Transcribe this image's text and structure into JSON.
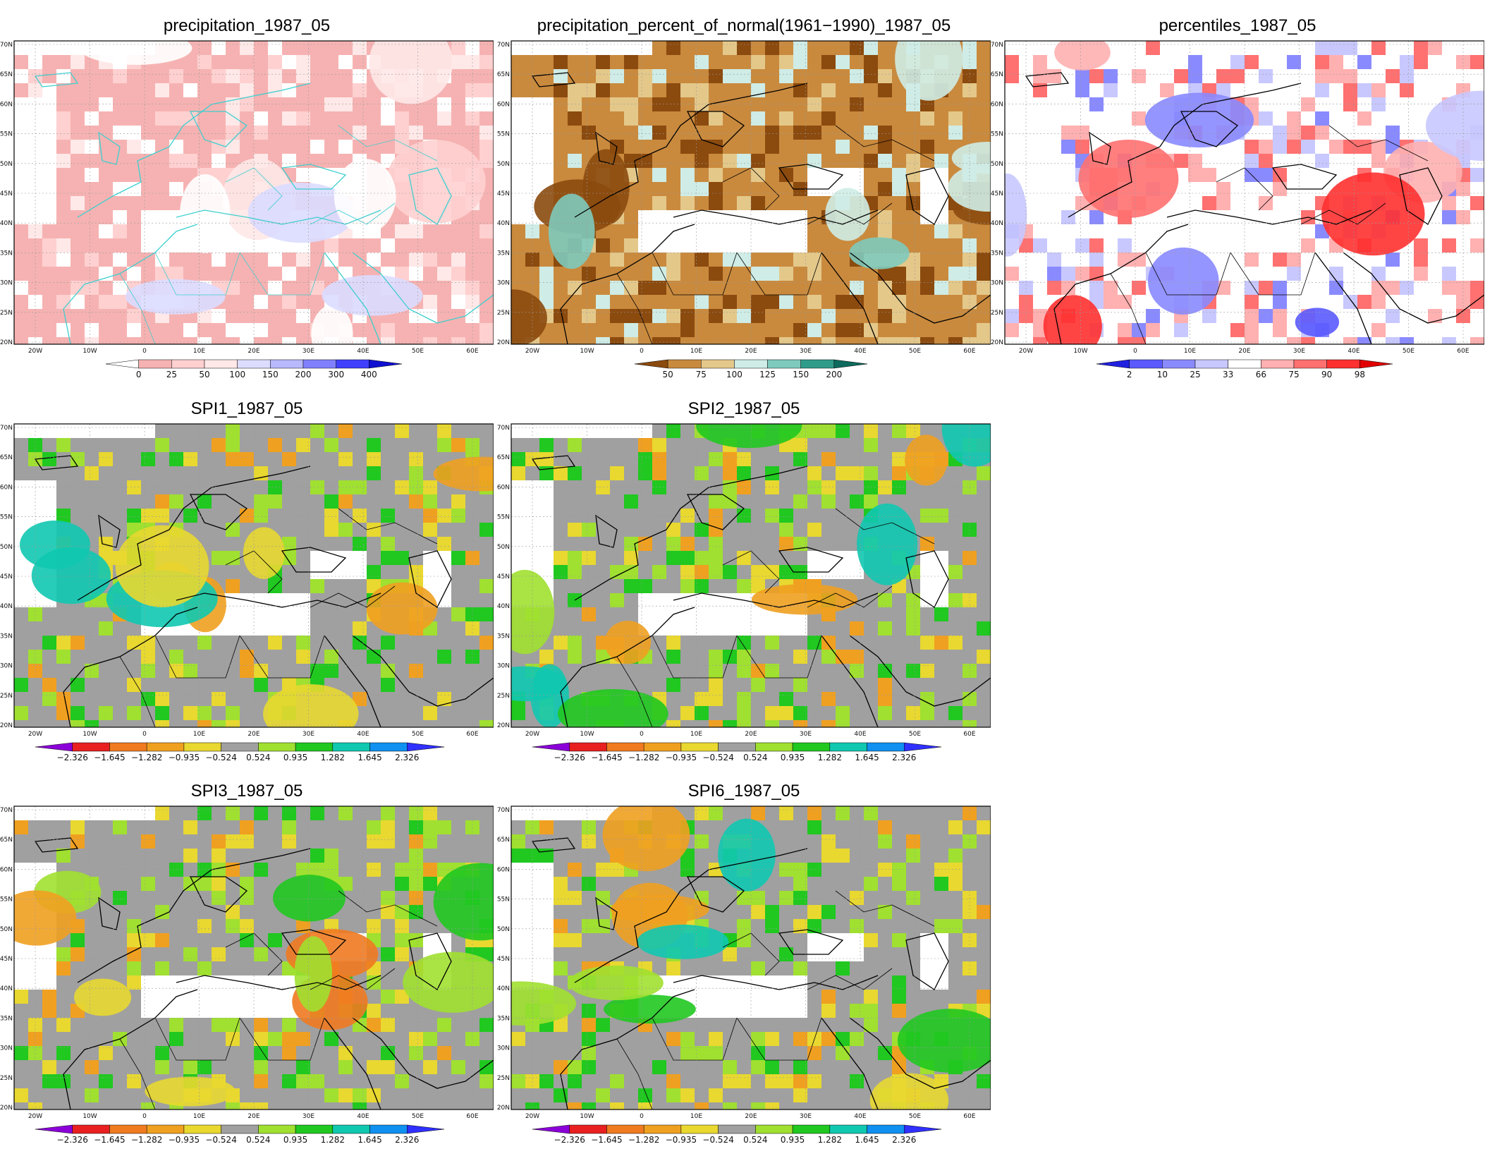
{
  "x_ticks": [
    "20W",
    "10W",
    "0",
    "10E",
    "20E",
    "30E",
    "40E",
    "50E",
    "60E"
  ],
  "y_ticks": [
    "70N",
    "65N",
    "60N",
    "55N",
    "50N",
    "45N",
    "40N",
    "35N",
    "30N",
    "25N",
    "20N"
  ],
  "colors": {
    "spi": [
      "#8b00d9",
      "#e82020",
      "#f07a20",
      "#f0a020",
      "#e8d830",
      "#a0a0a0",
      "#a0e030",
      "#20c820",
      "#10c8b0",
      "#1090f0",
      "#3030ff"
    ],
    "pct_normal": [
      "#8b4a0e",
      "#c98a3e",
      "#e4c88a",
      "#cfece6",
      "#7ecabd",
      "#2f9c8a",
      "#0e6a5c"
    ],
    "percentiles": [
      "#2020e0",
      "#5a5aff",
      "#8a8aff",
      "#c8c8ff",
      "#ffffff",
      "#ffb0b0",
      "#ff7070",
      "#ff3030",
      "#e00000"
    ],
    "precip": [
      "#ffffff",
      "#f6b2b2",
      "#ffd0d0",
      "#ffe8e8",
      "#dcdcff",
      "#b8b8ff",
      "#8080ff",
      "#4040ff",
      "#1010d0"
    ],
    "coast": "#000000",
    "coast_precip": "#3ccfcf"
  },
  "panels": [
    {
      "id": "precip",
      "title": "precipitation_1987_05",
      "palette": "precip",
      "cbar_labels": [
        "0",
        "25",
        "50",
        "100",
        "150",
        "200",
        "300",
        "400"
      ]
    },
    {
      "id": "pctn",
      "title": "precipitation_percent_of_normal(1961−1990)_1987_05",
      "palette": "pct_normal",
      "cbar_labels": [
        "50",
        "75",
        "100",
        "125",
        "150",
        "200"
      ]
    },
    {
      "id": "pctl",
      "title": "percentiles_1987_05",
      "palette": "percentiles",
      "cbar_labels": [
        "2",
        "10",
        "25",
        "33",
        "66",
        "75",
        "90",
        "98"
      ]
    },
    {
      "id": "spi1",
      "title": "SPI1_1987_05",
      "palette": "spi",
      "cbar_labels": [
        "−2.326",
        "−1.645",
        "−1.282",
        "−0.935",
        "−0.524",
        "0.524",
        "0.935",
        "1.282",
        "1.645",
        "2.326"
      ]
    },
    {
      "id": "spi2",
      "title": "SPI2_1987_05",
      "palette": "spi",
      "cbar_labels": [
        "−2.326",
        "−1.645",
        "−1.282",
        "−0.935",
        "−0.524",
        "0.524",
        "0.935",
        "1.282",
        "1.645",
        "2.326"
      ]
    },
    {
      "id": "spi3",
      "title": "SPI3_1987_05",
      "palette": "spi",
      "cbar_labels": [
        "−2.326",
        "−1.645",
        "−1.282",
        "−0.935",
        "−0.524",
        "0.524",
        "0.935",
        "1.282",
        "1.645",
        "2.326"
      ]
    },
    {
      "id": "spi6",
      "title": "SPI6_1987_05",
      "palette": "spi",
      "cbar_labels": [
        "−2.326",
        "−1.645",
        "−1.282",
        "−0.935",
        "−0.524",
        "0.524",
        "0.935",
        "1.282",
        "1.645",
        "2.326"
      ]
    }
  ]
}
